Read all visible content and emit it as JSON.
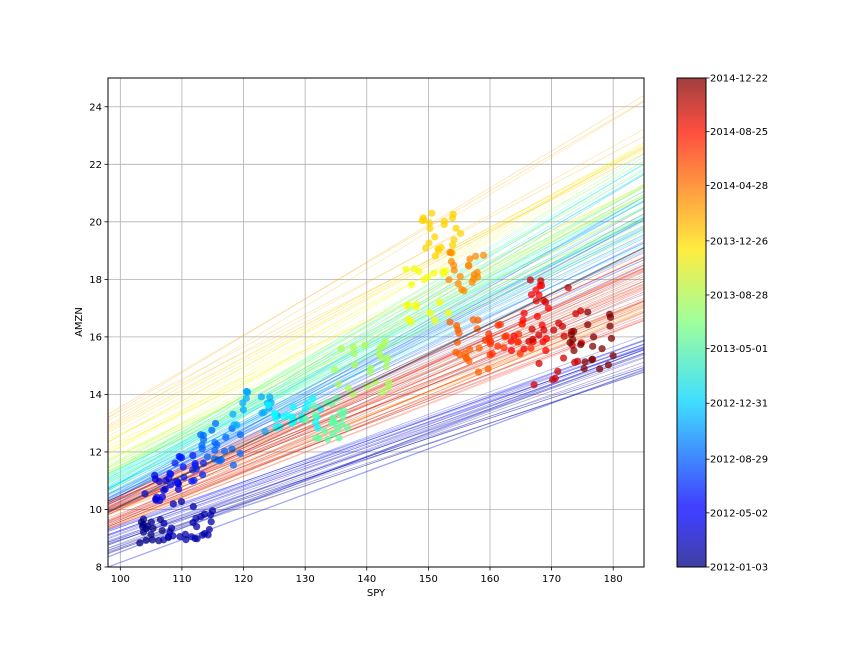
{
  "chart_data": {
    "type": "scatter",
    "title": "",
    "xlabel": "SPY",
    "ylabel": "AMZN",
    "xlim": [
      98,
      185
    ],
    "ylim": [
      8,
      25
    ],
    "xticks": [
      "100",
      "110",
      "120",
      "130",
      "140",
      "150",
      "160",
      "170",
      "180"
    ],
    "yticks": [
      "8",
      "10",
      "12",
      "14",
      "16",
      "18",
      "20",
      "22",
      "24"
    ],
    "grid": true,
    "colormap": "jet",
    "colorbar": {
      "ticks": [
        "2012-01-03",
        "2012-05-02",
        "2012-08-29",
        "2012-12-31",
        "2013-05-01",
        "2013-08-28",
        "2013-12-26",
        "2014-04-28",
        "2014-08-25",
        "2014-12-22"
      ],
      "range": [
        "2012-01-03",
        "2014-12-22"
      ]
    },
    "clusters": [
      {
        "date": "2012-01-03",
        "x_range": [
          103,
          107
        ],
        "y_range": [
          8.8,
          9.7
        ],
        "n": 16
      },
      {
        "date": "2012-02-15",
        "x_range": [
          107,
          115
        ],
        "y_range": [
          8.9,
          10.3
        ],
        "n": 28
      },
      {
        "date": "2012-04-10",
        "x_range": [
          104,
          110
        ],
        "y_range": [
          10.3,
          11.3
        ],
        "n": 18
      },
      {
        "date": "2012-06-15",
        "x_range": [
          108,
          114
        ],
        "y_range": [
          10.8,
          11.9
        ],
        "n": 18
      },
      {
        "date": "2012-09-05",
        "x_range": [
          113,
          120
        ],
        "y_range": [
          11.5,
          13.0
        ],
        "n": 22
      },
      {
        "date": "2012-11-15",
        "x_range": [
          118,
          126
        ],
        "y_range": [
          12.7,
          14.2
        ],
        "n": 18
      },
      {
        "date": "2013-02-15",
        "x_range": [
          124,
          134
        ],
        "y_range": [
          12.8,
          13.9
        ],
        "n": 22
      },
      {
        "date": "2013-05-20",
        "x_range": [
          130,
          139
        ],
        "y_range": [
          12.4,
          14.0
        ],
        "n": 22
      },
      {
        "date": "2013-08-10",
        "x_range": [
          134,
          144
        ],
        "y_range": [
          14.0,
          16.0
        ],
        "n": 24
      },
      {
        "date": "2013-11-01",
        "x_range": [
          146,
          154
        ],
        "y_range": [
          16.4,
          18.5
        ],
        "n": 20
      },
      {
        "date": "2013-12-26",
        "x_range": [
          149,
          156
        ],
        "y_range": [
          18.8,
          20.4
        ],
        "n": 22
      },
      {
        "date": "2014-03-15",
        "x_range": [
          153,
          159
        ],
        "y_range": [
          17.2,
          19.0
        ],
        "n": 20
      },
      {
        "date": "2014-04-28",
        "x_range": [
          153,
          160
        ],
        "y_range": [
          14.4,
          16.6
        ],
        "n": 18
      },
      {
        "date": "2014-06-20",
        "x_range": [
          159,
          167
        ],
        "y_range": [
          15.2,
          16.6
        ],
        "n": 20
      },
      {
        "date": "2014-08-10",
        "x_range": [
          163,
          170
        ],
        "y_range": [
          15.5,
          17.8
        ],
        "n": 20
      },
      {
        "date": "2014-10-01",
        "x_range": [
          166,
          175
        ],
        "y_range": [
          14.3,
          18.0
        ],
        "n": 26
      },
      {
        "date": "2014-12-22",
        "x_range": [
          173,
          180
        ],
        "y_range": [
          14.8,
          16.9
        ],
        "n": 22
      }
    ],
    "regression_lines": {
      "slope_range": [
        0.06,
        0.135
      ],
      "intercept_at_98_range": [
        8.3,
        12.7
      ],
      "mean_line": {
        "x": [
          98,
          185
        ],
        "y": [
          9.9,
          19.1
        ]
      }
    }
  }
}
